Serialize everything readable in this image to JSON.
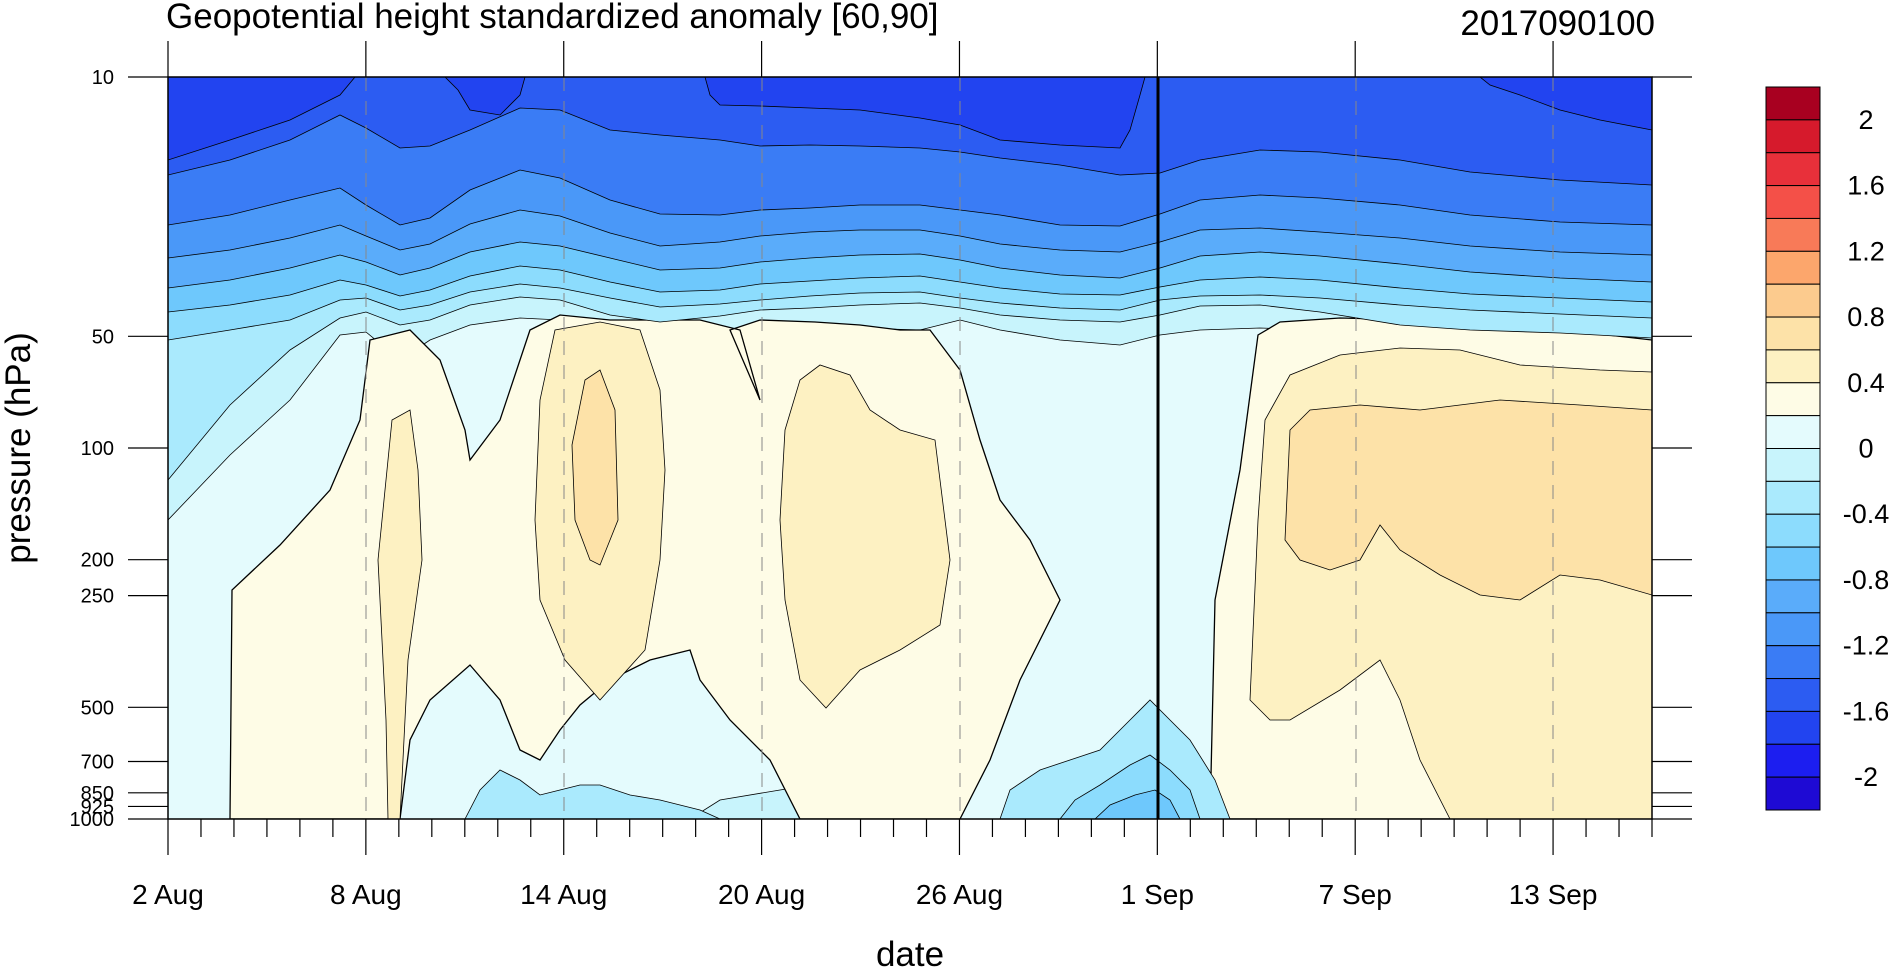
{
  "chart_data": {
    "type": "heatmap",
    "subtype": "filled-contour time-pressure cross section",
    "title": "Geopotential height standardized anomaly [60,90]",
    "right_title": "2017090100",
    "xlabel": "date",
    "ylabel": "pressure (hPa)",
    "x_categories": [
      "2 Aug",
      "8 Aug",
      "14 Aug",
      "20 Aug",
      "26 Aug",
      "1 Sep",
      "7 Sep",
      "13 Sep"
    ],
    "y_ticks": [
      10,
      50,
      100,
      200,
      250,
      500,
      700,
      850,
      925,
      1000
    ],
    "y_tick_labels": [
      "10",
      "50",
      "100",
      "200",
      "250",
      "500",
      "700",
      "850",
      "925",
      "1000"
    ],
    "y_scale": "log",
    "y_inverted": true,
    "x_start": "2017-08-02",
    "x_end": "2017-09-16",
    "analysis_date_line": "1 Sep",
    "colorbar": {
      "levels": [
        -2.2,
        -2.0,
        -1.8,
        -1.6,
        -1.4,
        -1.2,
        -1.0,
        -0.8,
        -0.6,
        -0.4,
        -0.2,
        0,
        0.2,
        0.4,
        0.6,
        0.8,
        1.0,
        1.2,
        1.4,
        1.6,
        1.8,
        2.0,
        2.2
      ],
      "tick_labels": [
        "2",
        "1.6",
        "1.2",
        "0.8",
        "0.4",
        "0",
        "-0.4",
        "-0.8",
        "-1.2",
        "-1.6",
        "-2"
      ],
      "colors": [
        "#1e0ad4",
        "#1c1ef0",
        "#2244f0",
        "#2c5cf2",
        "#3a7cf5",
        "#4a98f8",
        "#5aacfa",
        "#6ec8fc",
        "#8cdcfd",
        "#aaeafd",
        "#c8f4fc",
        "#e4fbfd",
        "#fefce6",
        "#fdf1c2",
        "#fde2a8",
        "#fccb8e",
        "#fca66c",
        "#f87a58",
        "#f45048",
        "#e8303a",
        "#d61a2c",
        "#a80020"
      ]
    },
    "regions": [
      {
        "name": "upper stratosphere strong negative",
        "pressure_range": [
          10,
          30
        ],
        "anomaly": -1.6
      },
      {
        "name": "lower stratosphere negative band",
        "pressure_range": [
          30,
          50
        ],
        "anomaly": -0.6
      },
      {
        "name": "mid August troposphere positive max",
        "date": "15 Aug",
        "pressure_range": [
          90,
          200
        ],
        "anomaly": 0.6
      },
      {
        "name": "early September troposphere positive",
        "pressure_range": [
          80,
          250
        ],
        "anomaly": 0.6
      },
      {
        "name": "near surface end August negative",
        "date": "1 Sep",
        "pressure_range": [
          500,
          1000
        ],
        "anomaly": -0.8
      }
    ]
  }
}
